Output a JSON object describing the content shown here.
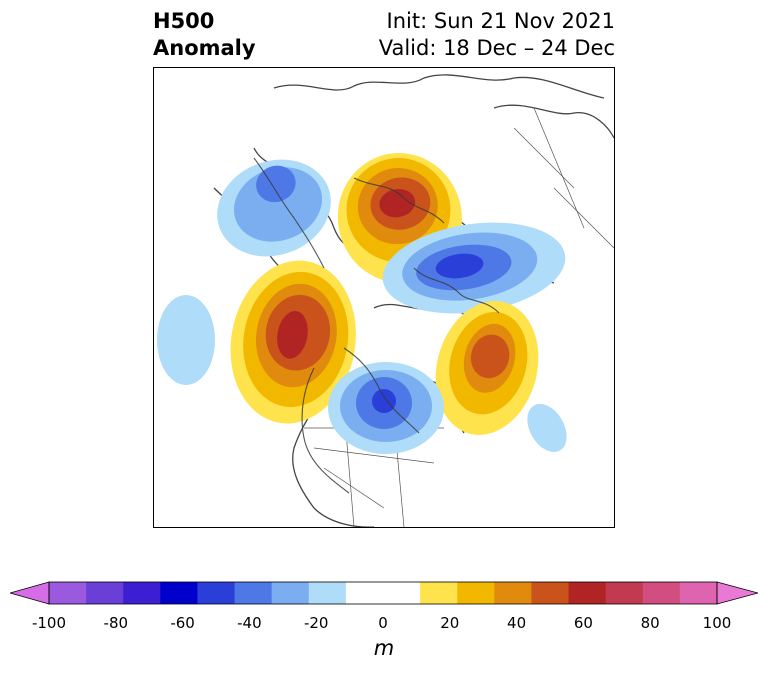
{
  "title": {
    "left_line1": "H500",
    "left_line2": "Anomaly",
    "init": "Init: Sun 21 Nov 2021",
    "valid": "Valid: 18 Dec – 24 Dec"
  },
  "colorbar": {
    "unit": "m",
    "ticks": [
      "-100",
      "-80",
      "-60",
      "-40",
      "-20",
      "0",
      "20",
      "40",
      "60",
      "80",
      "100"
    ],
    "colors": [
      "#9b59e0",
      "#6a3fd8",
      "#3b1fd0",
      "#0000cd",
      "#2a3fd8",
      "#4d78e6",
      "#7aaef0",
      "#aedcf9",
      "#ffffff",
      "#ffffff",
      "#ffe34d",
      "#f2b800",
      "#e08a0e",
      "#c9531a",
      "#b02424",
      "#c23a50",
      "#d24e80",
      "#de64b0"
    ],
    "under_color": "#d46de6",
    "over_color": "#e87ad6"
  },
  "map": {
    "projection": "polar stereographic, North Pole",
    "field": "500 hPa geopotential height anomaly",
    "anomalies": [
      {
        "sign": "negative",
        "peak_m": -40
      },
      {
        "sign": "positive",
        "peak_m": 60
      },
      {
        "sign": "negative",
        "peak_m": -50
      },
      {
        "sign": "negative",
        "peak_m": -20
      },
      {
        "sign": "positive",
        "peak_m": 60
      },
      {
        "sign": "positive",
        "peak_m": 40
      },
      {
        "sign": "negative",
        "peak_m": -50
      },
      {
        "sign": "negative",
        "peak_m": -20
      }
    ]
  }
}
